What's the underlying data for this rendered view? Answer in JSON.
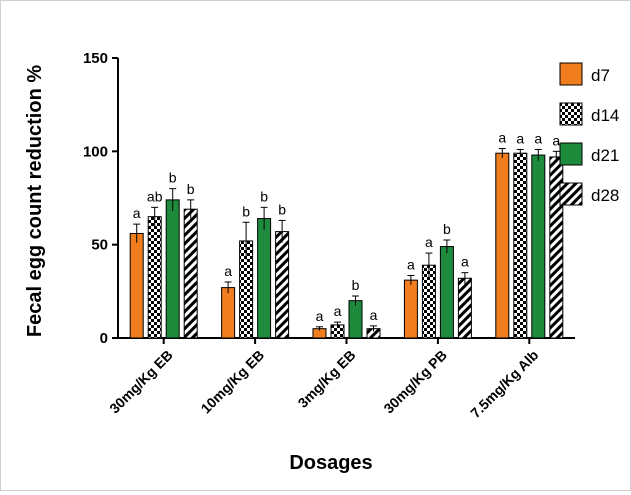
{
  "chart_data": {
    "type": "bar",
    "title": "",
    "xlabel": "Dosages",
    "ylabel": "Fecal egg count reduction %",
    "ylim": [
      0,
      150
    ],
    "yticks": [
      0,
      50,
      100,
      150
    ],
    "categories": [
      "30mg/Kg EB",
      "10mg/Kg EB",
      "3mg/Kg EB",
      "30mg/Kg PB",
      "7.5mg/Kg Alb"
    ],
    "legend_position": "right",
    "grid": false,
    "series": [
      {
        "name": "d7",
        "pattern": "solid",
        "color": "#f07d1e",
        "values": [
          56,
          27,
          5,
          31,
          99
        ],
        "errors": [
          5,
          3,
          1,
          2.5,
          2.5
        ],
        "labels": [
          "a",
          "a",
          "a",
          "a",
          "a"
        ]
      },
      {
        "name": "d14",
        "pattern": "checker",
        "color": "#000000",
        "values": [
          65,
          52,
          7,
          39,
          99
        ],
        "errors": [
          5,
          10,
          1.5,
          6.5,
          2
        ],
        "labels": [
          "ab",
          "b",
          "a",
          "a",
          "a"
        ]
      },
      {
        "name": "d21",
        "pattern": "solid",
        "color": "#1e8a3c",
        "values": [
          74,
          64,
          20,
          49,
          98
        ],
        "errors": [
          6,
          6,
          2.5,
          3.5,
          3
        ],
        "labels": [
          "b",
          "b",
          "b",
          "b",
          "a"
        ]
      },
      {
        "name": "d28",
        "pattern": "diagonal",
        "color": "#000000",
        "values": [
          69,
          57,
          5,
          32,
          97
        ],
        "errors": [
          5,
          6,
          1.5,
          3,
          3
        ],
        "labels": [
          "b",
          "b",
          "a",
          "a",
          "a"
        ]
      }
    ]
  }
}
